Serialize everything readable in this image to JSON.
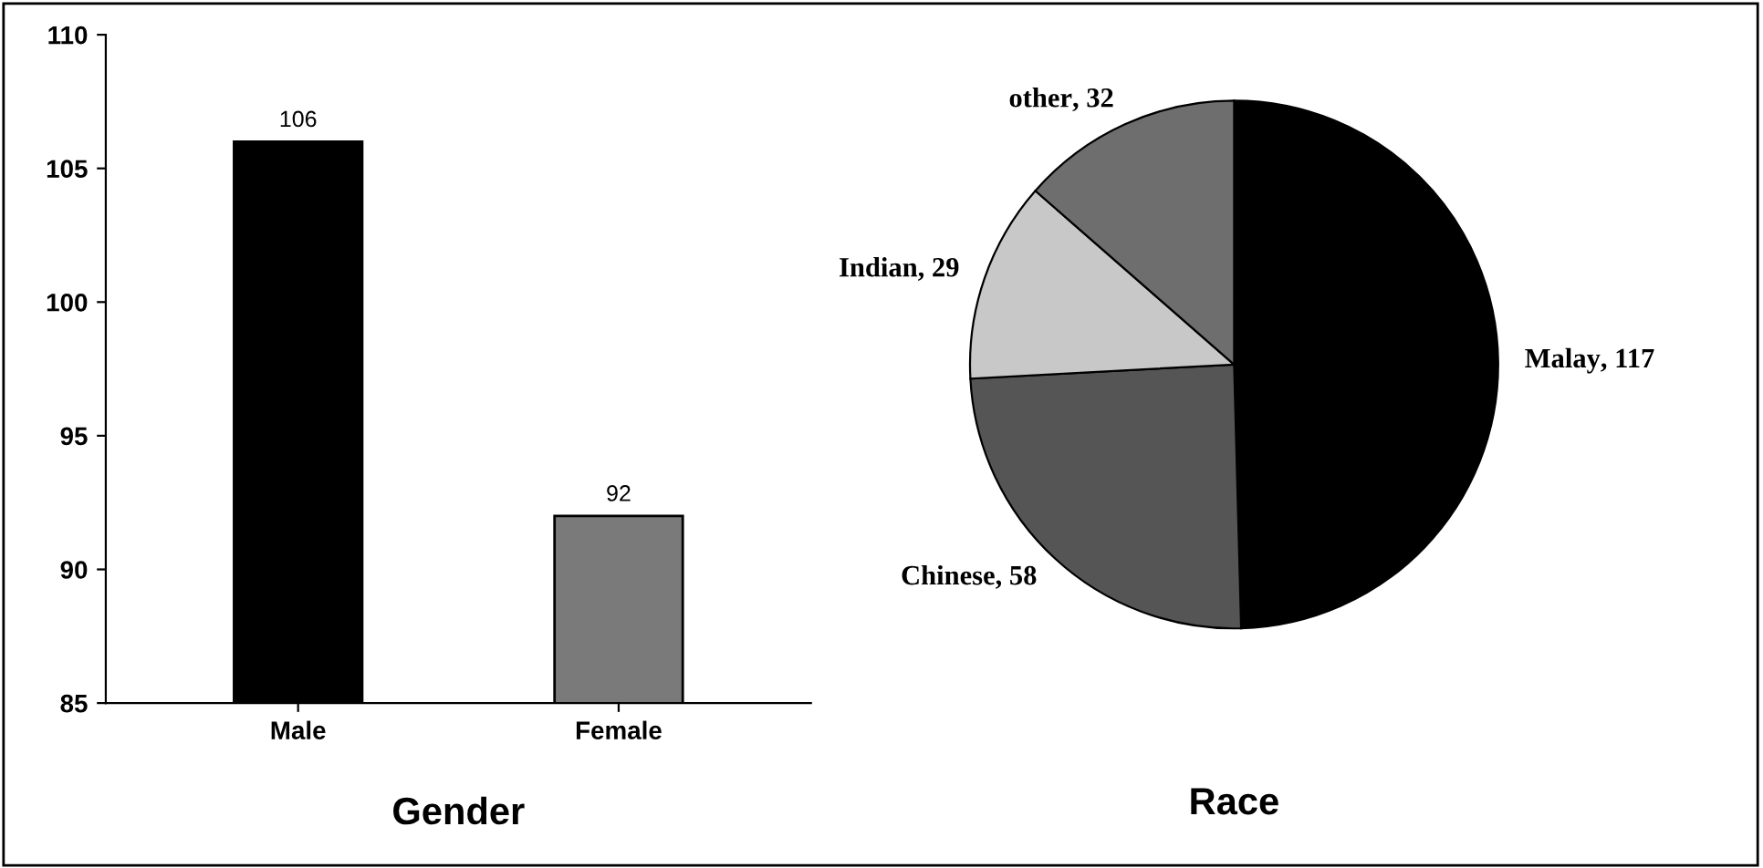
{
  "chart_data": [
    {
      "type": "bar",
      "title": "Gender",
      "categories": [
        "Male",
        "Female"
      ],
      "values": [
        106,
        92
      ],
      "colors": [
        "#000000",
        "#7a7a7a"
      ],
      "ylim": [
        85,
        110
      ],
      "yticks": [
        85,
        90,
        95,
        100,
        105,
        110
      ],
      "data_labels": true,
      "grid": false,
      "legend": false
    },
    {
      "type": "pie",
      "title": "Race",
      "categories": [
        "Malay",
        "Chinese",
        "Indian",
        "other"
      ],
      "values": [
        117,
        58,
        29,
        32
      ],
      "colors": [
        "#000000",
        "#555555",
        "#c8c8c8",
        "#6e6e6e"
      ],
      "value_labels": [
        ", 117",
        ", 58",
        ", 29",
        ", 32"
      ],
      "legend": false
    }
  ]
}
